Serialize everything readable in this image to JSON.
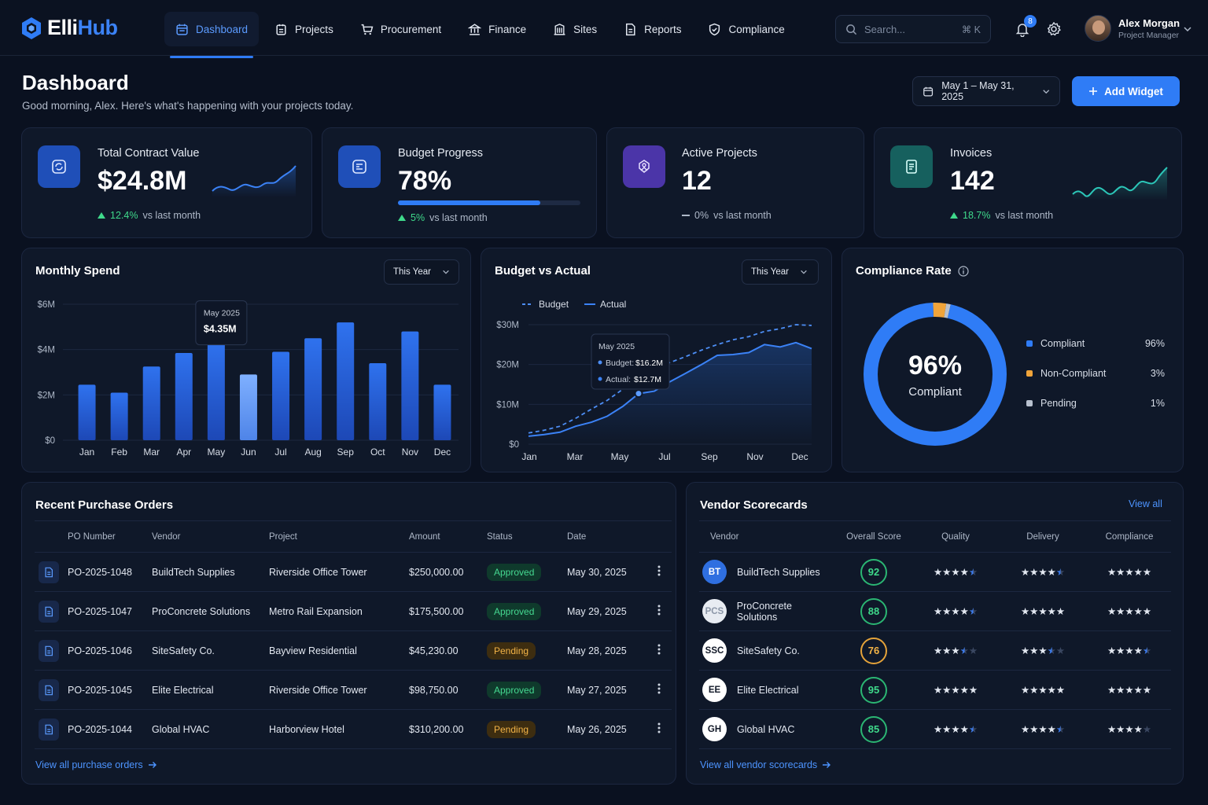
{
  "app": {
    "logo_main": "Elli",
    "logo_accent": "Hub"
  },
  "nav": {
    "items": [
      {
        "label": "Dashboard",
        "icon": "calendar-grid-icon",
        "active": true
      },
      {
        "label": "Projects",
        "icon": "clipboard-icon"
      },
      {
        "label": "Procurement",
        "icon": "cart-icon"
      },
      {
        "label": "Finance",
        "icon": "bank-icon"
      },
      {
        "label": "Sites",
        "icon": "building-icon"
      },
      {
        "label": "Reports",
        "icon": "document-icon"
      },
      {
        "label": "Compliance",
        "icon": "shield-check-icon"
      }
    ]
  },
  "search": {
    "placeholder": "Search...",
    "shortcut": "⌘ K"
  },
  "notifications": {
    "count": "8"
  },
  "user": {
    "name": "Alex Morgan",
    "role": "Project Manager"
  },
  "header": {
    "title": "Dashboard",
    "subtitle": "Good morning, Alex. Here's what's happening with your projects today.",
    "date_range": "May 1 – May 31, 2025",
    "add_widget": "Add Widget"
  },
  "kpis": [
    {
      "label": "Total Contract Value",
      "value": "$24.8M",
      "delta": "12.4%",
      "delta_text": "vs last month",
      "trend": "up",
      "color": "#1f4fb8"
    },
    {
      "label": "Budget Progress",
      "value": "78%",
      "progress": 0.78,
      "delta": "5%",
      "delta_text": "vs last month",
      "trend": "up",
      "color": "#1f4fb8"
    },
    {
      "label": "Active Projects",
      "value": "12",
      "delta": "0%",
      "delta_text": "vs last month",
      "trend": "flat",
      "color": "#4b35a8"
    },
    {
      "label": "Invoices",
      "value": "142",
      "delta": "18.7%",
      "delta_text": "vs last month",
      "trend": "up",
      "color": "#16605e"
    }
  ],
  "monthly_spend": {
    "title": "Monthly Spend",
    "filter": "This Year",
    "tooltip": {
      "label": "May 2025",
      "value": "$4.35M"
    },
    "chart_data": {
      "type": "bar",
      "categories": [
        "Jan",
        "Feb",
        "Mar",
        "Apr",
        "May",
        "Jun",
        "Jul",
        "Aug",
        "Sep",
        "Oct",
        "Nov",
        "Dec"
      ],
      "values": [
        2.45,
        2.1,
        3.25,
        3.85,
        4.35,
        2.9,
        3.9,
        4.5,
        5.2,
        3.4,
        4.8,
        2.45
      ],
      "yticks": [
        "$0",
        "$2M",
        "$4M",
        "$6M"
      ],
      "ylim": [
        0,
        6
      ],
      "highlight": "Jun"
    }
  },
  "budget_vs_actual": {
    "title": "Budget vs Actual",
    "filter": "This Year",
    "legend": {
      "budget": "Budget",
      "actual": "Actual"
    },
    "tooltip": {
      "label": "May 2025",
      "budget": "Budget:",
      "budget_val": "$16.2M",
      "actual": "Actual:",
      "actual_val": "$12.7M"
    },
    "chart_data": {
      "type": "line",
      "x_ticks": [
        "Jan",
        "Mar",
        "May",
        "Jul",
        "Sep",
        "Nov",
        "Dec"
      ],
      "yticks": [
        "$0",
        "$10M",
        "$20M",
        "$30M"
      ],
      "ylim": [
        0,
        30
      ],
      "series": [
        {
          "name": "Budget",
          "values": [
            2.8,
            3.5,
            4.5,
            6.5,
            8.8,
            11.0,
            13.8,
            16.2,
            18.6,
            20.5,
            22.0,
            23.6,
            25.0,
            26.2,
            27.0,
            28.3,
            29.0,
            30.0,
            29.8
          ]
        },
        {
          "name": "Actual",
          "values": [
            2.0,
            2.4,
            3.0,
            4.5,
            5.5,
            7.0,
            9.5,
            12.7,
            13.3,
            15.7,
            17.8,
            20.0,
            22.3,
            22.5,
            23.0,
            25.0,
            24.4,
            25.5,
            24.0
          ]
        }
      ]
    }
  },
  "compliance": {
    "title": "Compliance Rate",
    "center_value": "96%",
    "center_label": "Compliant",
    "chart_data": {
      "type": "pie",
      "slices": [
        {
          "label": "Compliant",
          "value": 96,
          "pct": "96%",
          "color": "#2f7cf6"
        },
        {
          "label": "Non-Compliant",
          "value": 3,
          "pct": "3%",
          "color": "#f0a43a"
        },
        {
          "label": "Pending",
          "value": 1,
          "pct": "1%",
          "color": "#b8c1cf"
        }
      ]
    }
  },
  "purchase_orders": {
    "title": "Recent Purchase Orders",
    "columns": [
      "PO Number",
      "Vendor",
      "Project",
      "Amount",
      "Status",
      "Date"
    ],
    "rows": [
      {
        "po": "PO-2025-1048",
        "vendor": "BuildTech Supplies",
        "project": "Riverside Office Tower",
        "amount": "$250,000.00",
        "status": "Approved",
        "date": "May 30, 2025"
      },
      {
        "po": "PO-2025-1047",
        "vendor": "ProConcrete Solutions",
        "project": "Metro Rail Expansion",
        "amount": "$175,500.00",
        "status": "Approved",
        "date": "May 29, 2025"
      },
      {
        "po": "PO-2025-1046",
        "vendor": "SiteSafety Co.",
        "project": "Bayview Residential",
        "amount": "$45,230.00",
        "status": "Pending",
        "date": "May 28, 2025"
      },
      {
        "po": "PO-2025-1045",
        "vendor": "Elite Electrical",
        "project": "Riverside Office Tower",
        "amount": "$98,750.00",
        "status": "Approved",
        "date": "May 27, 2025"
      },
      {
        "po": "PO-2025-1044",
        "vendor": "Global HVAC",
        "project": "Harborview Hotel",
        "amount": "$310,200.00",
        "status": "Pending",
        "date": "May 26, 2025"
      }
    ],
    "view_all": "View all purchase orders"
  },
  "vendors": {
    "title": "Vendor Scorecards",
    "view_all_top": "View all",
    "columns": [
      "Vendor",
      "Overall Score",
      "Quality",
      "Delivery",
      "Compliance"
    ],
    "rows": [
      {
        "initials": "BT",
        "name": "BuildTech Supplies",
        "score": "92",
        "quality": 4.5,
        "delivery": 4.5,
        "compliance": 5,
        "avatar_bg": "#2f6fe0",
        "avatar_fg": "#ffffff"
      },
      {
        "initials": "PCS",
        "name": "ProConcrete Solutions",
        "score": "88",
        "quality": 4.5,
        "delivery": 5,
        "compliance": 5,
        "avatar_bg": "#e8ecf2",
        "avatar_fg": "#8c97a8"
      },
      {
        "initials": "SSC",
        "name": "SiteSafety Co.",
        "score": "76",
        "quality": 3.5,
        "delivery": 3.5,
        "compliance": 4.5,
        "avatar_bg": "#ffffff",
        "avatar_fg": "#111827"
      },
      {
        "initials": "EE",
        "name": "Elite Electrical",
        "score": "95",
        "quality": 5,
        "delivery": 5,
        "compliance": 5,
        "avatar_bg": "#ffffff",
        "avatar_fg": "#111827"
      },
      {
        "initials": "GH",
        "name": "Global HVAC",
        "score": "85",
        "quality": 4.5,
        "delivery": 4.5,
        "compliance": 4,
        "avatar_bg": "#ffffff",
        "avatar_fg": "#111827"
      }
    ],
    "view_all": "View all vendor scorecards"
  }
}
